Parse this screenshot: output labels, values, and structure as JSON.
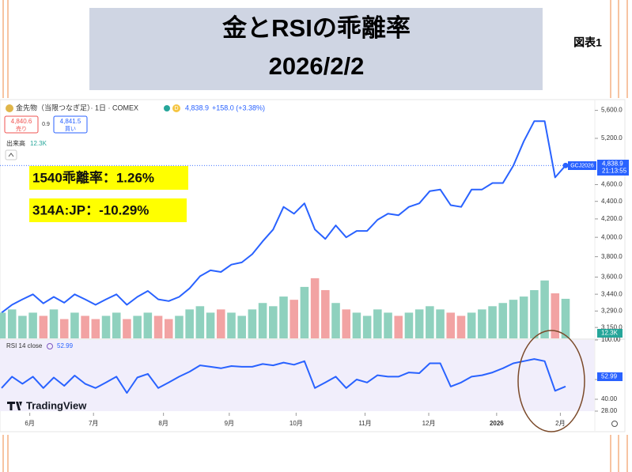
{
  "slide": {
    "title_lines": [
      "金とRSIの乖離率",
      "2026/2/2"
    ],
    "figure_label": "図表1",
    "callouts": [
      "1540乖離率：1.26%",
      "314A:JP：-10.29%"
    ]
  },
  "header": {
    "instrument": "金先物（当限つなぎ足）· 1日 · COMEX",
    "badge": "D",
    "last": "4,838.9",
    "change": "+158.0 (+3.38%)",
    "sell_price": "4,840.6",
    "sell": "売り",
    "spread": "0.9",
    "buy_price": "4,841.5",
    "buy": "買い",
    "volume_label": "出来高",
    "volume_value": "12.3K",
    "rsi_label": "RSI 14 close",
    "rsi_value": "52.99",
    "brand": "TradingView"
  },
  "price_tag": {
    "symbol": "GCJ2026",
    "price": "4,838.9",
    "time": "21:13:55"
  },
  "chart_data": [
    {
      "type": "line",
      "color": "#2962ff",
      "log_scale": true,
      "grid": false,
      "categories": [
        null,
        null,
        null,
        null,
        null,
        null,
        null,
        null,
        null,
        null,
        null,
        null,
        null,
        null,
        null,
        null,
        null,
        null,
        null,
        null,
        null,
        null,
        null,
        null,
        null,
        null,
        null,
        null,
        null,
        null,
        null,
        null,
        null,
        null,
        null,
        null,
        null,
        null,
        null,
        null,
        null,
        null,
        null,
        null,
        null,
        null,
        null,
        null,
        null,
        null,
        null,
        null,
        null,
        null,
        null
      ],
      "values": [
        3275,
        3345,
        3394,
        3439,
        3358,
        3416,
        3363,
        3439,
        3394,
        3345,
        3394,
        3439,
        3345,
        3416,
        3470,
        3394,
        3378,
        3416,
        3494,
        3608,
        3665,
        3649,
        3721,
        3743,
        3825,
        3958,
        4084,
        4336,
        4258,
        4377,
        4084,
        3983,
        4128,
        4000,
        4068,
        4068,
        4190,
        4258,
        4241,
        4336,
        4377,
        4521,
        4540,
        4356,
        4336,
        4540,
        4540,
        4619,
        4619,
        4837,
        5160,
        5442,
        5442,
        4688,
        4838.9
      ],
      "ylim": [
        3060,
        5750
      ],
      "yticks": [
        {
          "value": 5600,
          "label": "5,600.0"
        },
        {
          "value": 5200,
          "label": "5,200.0"
        },
        {
          "value": 4600,
          "label": "4,600.0"
        },
        {
          "value": 4400,
          "label": "4,400.0"
        },
        {
          "value": 4200,
          "label": "4,200.0"
        },
        {
          "value": 4000,
          "label": "4,000.0"
        },
        {
          "value": 3800,
          "label": "3,800.0"
        },
        {
          "value": 3600,
          "label": "3,600.0"
        },
        {
          "value": 3440,
          "label": "3,440.0"
        },
        {
          "value": 3290,
          "label": "3,290.0"
        },
        {
          "value": 3150,
          "label": "3,150.0"
        }
      ]
    },
    {
      "type": "bar",
      "up_color": "#8fd1be",
      "down_color": "#f2a3a3",
      "last_label": "12.3K",
      "categories": [
        null,
        null,
        null,
        null,
        null,
        null,
        null,
        null,
        null,
        null,
        null,
        null,
        null,
        null,
        null,
        null,
        null,
        null,
        null,
        null,
        null,
        null,
        null,
        null,
        null,
        null,
        null,
        null,
        null,
        null,
        null,
        null,
        null,
        null,
        null,
        null,
        null,
        null,
        null,
        null,
        null,
        null,
        null,
        null,
        null,
        null,
        null,
        null,
        null,
        null,
        null,
        null,
        null,
        null,
        null
      ],
      "values": [
        8,
        9,
        7,
        8,
        7,
        9,
        6,
        8,
        7,
        6,
        7,
        8,
        6,
        7,
        8,
        7,
        6,
        7,
        9,
        10,
        8,
        9,
        8,
        7,
        9,
        11,
        10,
        13,
        12,
        16,
        18.7,
        15,
        11,
        9,
        8,
        7,
        9,
        8,
        7,
        8,
        9,
        10,
        9,
        8,
        7,
        8,
        9,
        10,
        11,
        12,
        13,
        15,
        18,
        14,
        12.3
      ],
      "ylim": [
        0,
        20
      ]
    },
    {
      "type": "line",
      "color": "#2962ff",
      "grid": false,
      "categories": [
        null,
        null,
        null,
        null,
        null,
        null,
        null,
        null,
        null,
        null,
        null,
        null,
        null,
        null,
        null,
        null,
        null,
        null,
        null,
        null,
        null,
        null,
        null,
        null,
        null,
        null,
        null,
        null,
        null,
        null,
        null,
        null,
        null,
        null,
        null,
        null,
        null,
        null,
        null,
        null,
        null,
        null,
        null,
        null,
        null,
        null,
        null,
        null,
        null,
        null,
        null,
        null,
        null,
        null,
        null
      ],
      "values": [
        51.4,
        62.9,
        55.7,
        62.9,
        51.4,
        62,
        53.6,
        64,
        55.7,
        51.4,
        57,
        62.9,
        46.4,
        62,
        65.7,
        51.4,
        57,
        62.9,
        67.9,
        74.3,
        72.9,
        71.4,
        73.6,
        72.9,
        72.9,
        75.7,
        74.3,
        77.1,
        75,
        78.6,
        51.4,
        57,
        62.9,
        51.4,
        60,
        57,
        64.3,
        62.9,
        62.9,
        67.1,
        66.4,
        76.4,
        76.4,
        52.9,
        57,
        62.9,
        64.3,
        67.1,
        71.4,
        76.4,
        78.6,
        80.7,
        78.6,
        48.6,
        52.99
      ],
      "ylim": [
        28,
        100
      ],
      "yticks": [
        {
          "value": 100,
          "label": "100.00"
        },
        {
          "value": 60,
          "label": "60.00"
        },
        {
          "value": 40,
          "label": "40.00"
        },
        {
          "value": 28,
          "label": "28.00"
        }
      ],
      "xticks": [
        {
          "value": 2.7,
          "label": "6月"
        },
        {
          "value": 8.8,
          "label": "7月"
        },
        {
          "value": 15.5,
          "label": "8月"
        },
        {
          "value": 21.8,
          "label": "9月"
        },
        {
          "value": 28.2,
          "label": "10月"
        },
        {
          "value": 34.8,
          "label": "11月"
        },
        {
          "value": 40.9,
          "label": "12月"
        },
        {
          "value": 47.4,
          "label": "2026"
        },
        {
          "value": 53.5,
          "label": "2月"
        }
      ]
    }
  ]
}
